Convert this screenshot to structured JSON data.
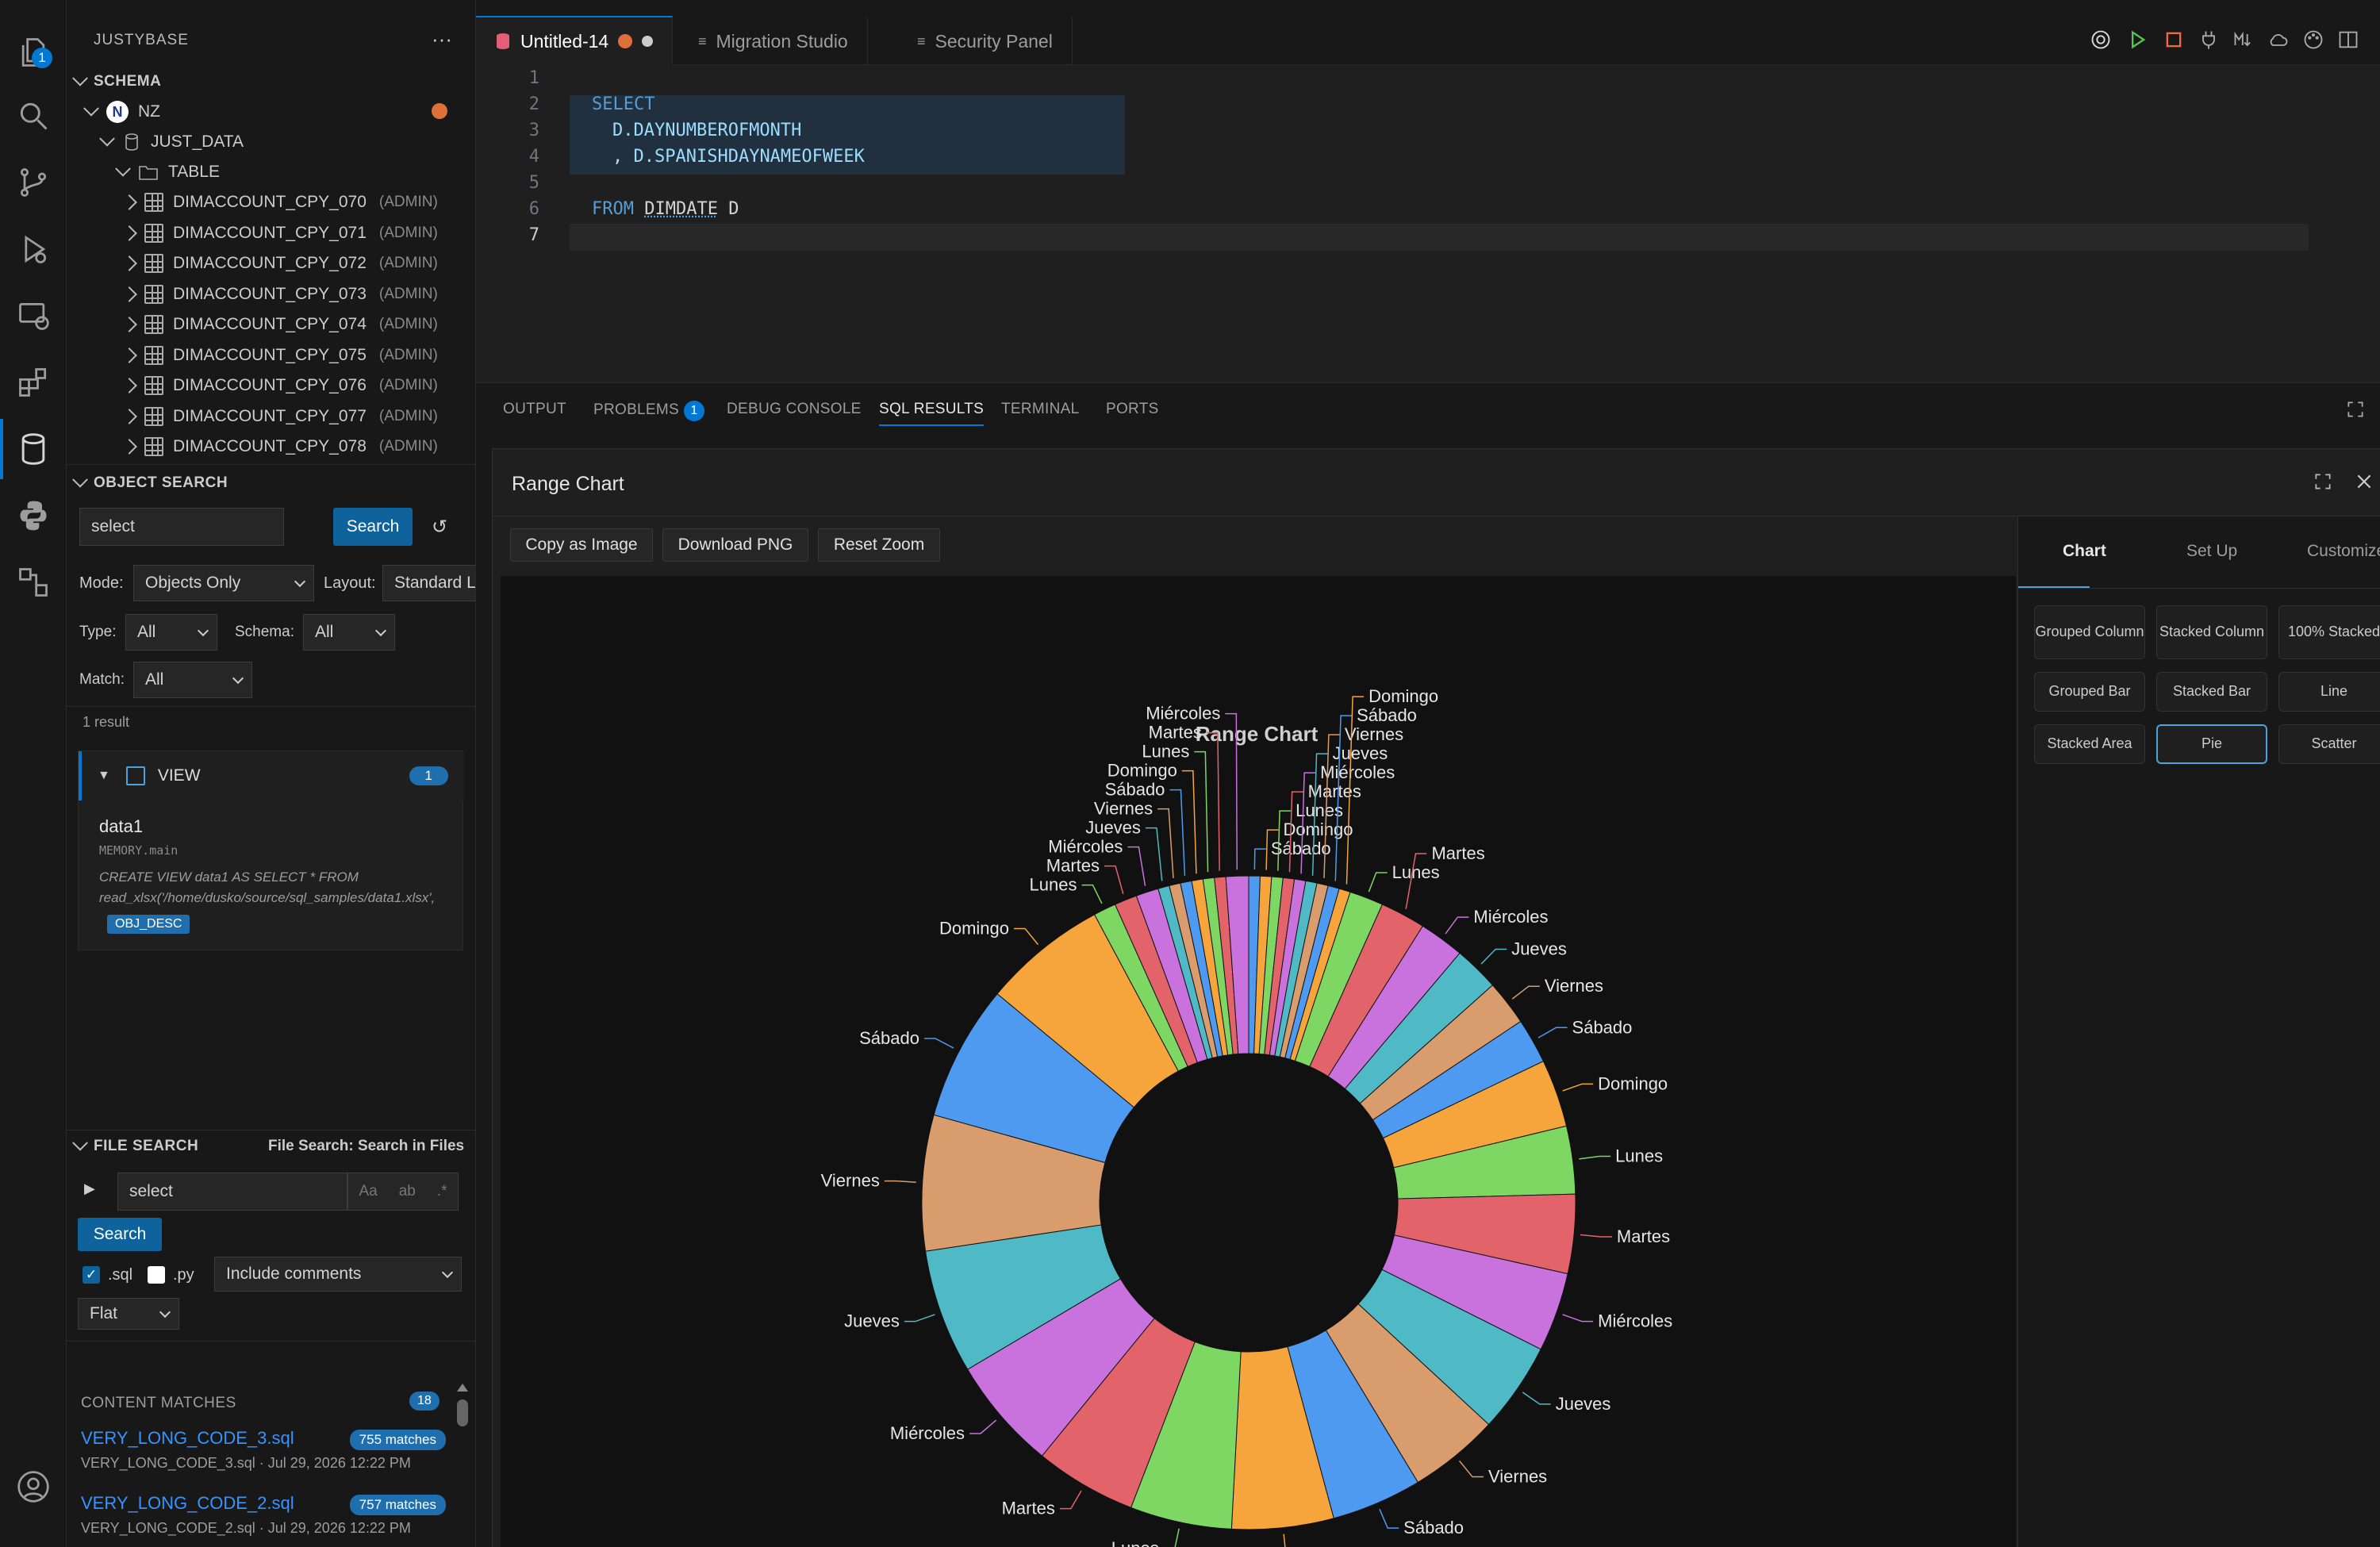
{
  "activity_bar": {
    "explorer_badge": "1",
    "items": [
      "files-icon",
      "search-icon",
      "source-control-icon",
      "run-debug-icon",
      "remote-explorer-icon",
      "extensions-icon",
      "database-icon",
      "python-icon",
      "flow-icon",
      "account-icon"
    ]
  },
  "sidebar": {
    "title": "JUSTYBASE",
    "schema": {
      "heading": "SCHEMA",
      "connection": "NZ",
      "database": "JUST_DATA",
      "folder": "TABLE",
      "tables": [
        {
          "name": "DIMACCOUNT_CPY_070",
          "owner": "(ADMIN)"
        },
        {
          "name": "DIMACCOUNT_CPY_071",
          "owner": "(ADMIN)"
        },
        {
          "name": "DIMACCOUNT_CPY_072",
          "owner": "(ADMIN)"
        },
        {
          "name": "DIMACCOUNT_CPY_073",
          "owner": "(ADMIN)"
        },
        {
          "name": "DIMACCOUNT_CPY_074",
          "owner": "(ADMIN)"
        },
        {
          "name": "DIMACCOUNT_CPY_075",
          "owner": "(ADMIN)"
        },
        {
          "name": "DIMACCOUNT_CPY_076",
          "owner": "(ADMIN)"
        },
        {
          "name": "DIMACCOUNT_CPY_077",
          "owner": "(ADMIN)"
        },
        {
          "name": "DIMACCOUNT_CPY_078",
          "owner": "(ADMIN)"
        }
      ]
    },
    "object_search": {
      "heading": "OBJECT SEARCH",
      "query": "select",
      "search_label": "Search",
      "mode_label": "Mode:",
      "mode_value": "Objects Only",
      "layout_label": "Layout:",
      "layout_value": "Standard L",
      "type_label": "Type:",
      "type_value": "All",
      "schema_label": "Schema:",
      "schema_value": "All",
      "match_label": "Match:",
      "match_value": "All",
      "result_count": "1 result",
      "group_label": "VIEW",
      "group_count": "1",
      "result_name": "data1",
      "result_location": "MEMORY.main",
      "result_sql": "CREATE VIEW data1 AS SELECT * FROM read_xlsx('/home/dusko/source/sql_samples/data1.xlsx',",
      "result_tag": "OBJ_DESC"
    },
    "file_search": {
      "heading": "FILE SEARCH",
      "subtitle": "File Search: Search in Files",
      "query": "select",
      "opt_case": "Aa",
      "opt_word": "ab",
      "opt_regex": ".*",
      "search_label": "Search",
      "ext_sql": ".sql",
      "ext_py": ".py",
      "comments_value": "Include comments",
      "view_value": "Flat",
      "matches_heading": "CONTENT MATCHES",
      "matches_count": "18",
      "matches": [
        {
          "file": "VERY_LONG_CODE_3.sql",
          "count": "755 matches",
          "meta": "VERY_LONG_CODE_3.sql · Jul 29, 2026 12:22 PM"
        },
        {
          "file": "VERY_LONG_CODE_2.sql",
          "count": "757 matches",
          "meta": "VERY_LONG_CODE_2.sql · Jul 29, 2026 12:22 PM"
        }
      ]
    }
  },
  "tabs": [
    {
      "label": "Untitled-14"
    },
    {
      "label": "Migration Studio"
    },
    {
      "label": "Security Panel"
    }
  ],
  "editor": {
    "lines": [
      "1",
      "2",
      "3",
      "4",
      "5",
      "6",
      "7"
    ],
    "code": {
      "l2": "SELECT",
      "l3": "D.DAYNUMBEROFMONTH",
      "l4_comma": ",",
      "l4": "D.SPANISHDAYNAMEOFWEEK",
      "l6_kw": "FROM",
      "l6_table": "DIMDATE",
      "l6_alias": "D"
    }
  },
  "panel": {
    "tabs": [
      "OUTPUT",
      "PROBLEMS",
      "DEBUG CONSOLE",
      "SQL RESULTS",
      "TERMINAL",
      "PORTS"
    ],
    "problems_count": "1"
  },
  "modal": {
    "title": "Range Chart",
    "buttons": [
      "Copy as Image",
      "Download PNG",
      "Reset Zoom"
    ],
    "right_tabs": [
      "Chart",
      "Set Up",
      "Customize"
    ],
    "chart_types": [
      "Grouped Column",
      "Stacked Column",
      "100% Stacked",
      "Grouped Bar",
      "Stacked Bar",
      "Line",
      "Stacked Area",
      "Pie",
      "Scatter"
    ],
    "active_type": "Pie"
  },
  "chart_data": {
    "type": "pie",
    "variant": "donut",
    "title": "Range Chart",
    "color_cycle": [
      "#4e9af1",
      "#f5a53b",
      "#7ed663",
      "#e2646a",
      "#c972dd",
      "#4fb9c6",
      "#d99c6c"
    ],
    "slices": [
      {
        "label": "Sábado",
        "value": 1
      },
      {
        "label": "Domingo",
        "value": 1
      },
      {
        "label": "Lunes",
        "value": 1
      },
      {
        "label": "Martes",
        "value": 1
      },
      {
        "label": "Miércoles",
        "value": 1
      },
      {
        "label": "Jueves",
        "value": 1
      },
      {
        "label": "Viernes",
        "value": 1
      },
      {
        "label": "Sábado",
        "value": 1
      },
      {
        "label": "Domingo",
        "value": 1
      },
      {
        "label": "Lunes",
        "value": 3
      },
      {
        "label": "Martes",
        "value": 4
      },
      {
        "label": "Miércoles",
        "value": 4
      },
      {
        "label": "Jueves",
        "value": 4
      },
      {
        "label": "Viernes",
        "value": 4
      },
      {
        "label": "Sábado",
        "value": 4
      },
      {
        "label": "Domingo",
        "value": 6
      },
      {
        "label": "Lunes",
        "value": 6
      },
      {
        "label": "Martes",
        "value": 7
      },
      {
        "label": "Miércoles",
        "value": 7
      },
      {
        "label": "Jueves",
        "value": 8
      },
      {
        "label": "Viernes",
        "value": 8
      },
      {
        "label": "Sábado",
        "value": 8
      },
      {
        "label": "Domingo",
        "value": 9
      },
      {
        "label": "Lunes",
        "value": 9
      },
      {
        "label": "Martes",
        "value": 9
      },
      {
        "label": "Miércoles",
        "value": 10
      },
      {
        "label": "Jueves",
        "value": 11
      },
      {
        "label": "Viernes",
        "value": 12
      },
      {
        "label": "Sábado",
        "value": 12
      },
      {
        "label": "Domingo",
        "value": 11
      },
      {
        "label": "Lunes",
        "value": 2
      },
      {
        "label": "Martes",
        "value": 2
      },
      {
        "label": "Miércoles",
        "value": 2
      },
      {
        "label": "Jueves",
        "value": 1
      },
      {
        "label": "Viernes",
        "value": 1
      },
      {
        "label": "Sábado",
        "value": 1
      },
      {
        "label": "Domingo",
        "value": 1
      },
      {
        "label": "Lunes",
        "value": 1
      },
      {
        "label": "Martes",
        "value": 1
      },
      {
        "label": "Miércoles",
        "value": 2
      }
    ]
  }
}
